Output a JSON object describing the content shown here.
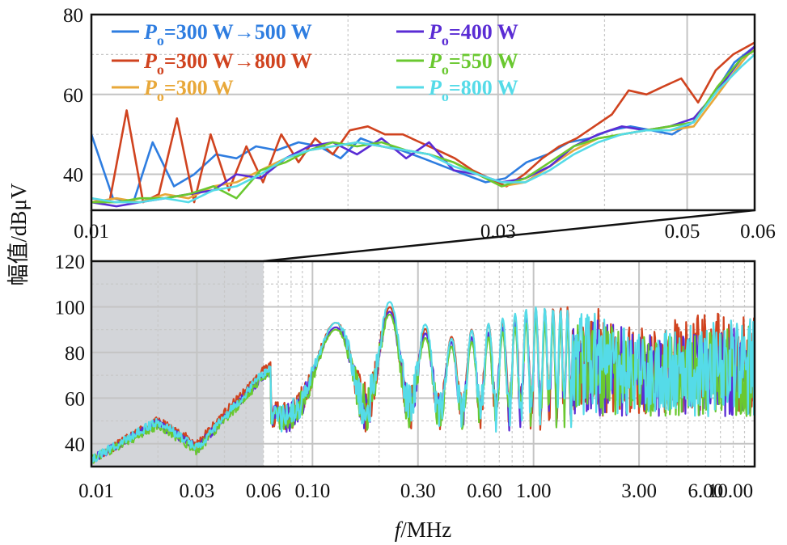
{
  "chart_data": [
    {
      "id": "inset",
      "type": "line",
      "xscale": "log",
      "xlim": [
        0.01,
        0.06
      ],
      "ylim": [
        31,
        80
      ],
      "yticks": [
        40,
        60,
        80
      ],
      "xticks": [
        "0.01",
        "0.03",
        "0.05",
        "0.06"
      ],
      "grid": true,
      "legend_position": "top-left",
      "series": [
        {
          "name": "Po=300 W→500 W",
          "label_P": "P",
          "label_sub": "o",
          "label_rest": "=300 W→500 W",
          "color": "#2e7de0",
          "x": [
            0.01,
            0.0106,
            0.0112,
            0.0118,
            0.0125,
            0.0132,
            0.014,
            0.0148,
            0.0156,
            0.0165,
            0.0175,
            0.0185,
            0.0196,
            0.0207,
            0.0219,
            0.0231,
            0.0245,
            0.0259,
            0.0274,
            0.029,
            0.0306,
            0.0324,
            0.0343,
            0.0363,
            0.0384,
            0.0406,
            0.0429,
            0.0454,
            0.048,
            0.0508,
            0.0537,
            0.0568,
            0.06
          ],
          "y": [
            50,
            34,
            33,
            48,
            37,
            40,
            45,
            44,
            47,
            46,
            48,
            47,
            44,
            49,
            47,
            46,
            44,
            42,
            40,
            38,
            39,
            43,
            45,
            48,
            49,
            51,
            52,
            51,
            50,
            53,
            60,
            68,
            72
          ]
        },
        {
          "name": "Po=300 W→800 W",
          "label_P": "P",
          "label_sub": "o",
          "label_rest": "=300 W→800 W",
          "color": "#d0431f",
          "x": [
            0.01,
            0.0105,
            0.011,
            0.0115,
            0.012,
            0.0126,
            0.0132,
            0.0138,
            0.0145,
            0.0152,
            0.0159,
            0.0167,
            0.0175,
            0.0183,
            0.0192,
            0.0201,
            0.0211,
            0.0221,
            0.0232,
            0.0243,
            0.0255,
            0.0267,
            0.028,
            0.0293,
            0.0307,
            0.0322,
            0.0338,
            0.0354,
            0.0371,
            0.0389,
            0.0408,
            0.0427,
            0.0448,
            0.0469,
            0.0492,
            0.0515,
            0.054,
            0.0566,
            0.06
          ],
          "y": [
            34,
            33,
            56,
            33,
            35,
            54,
            33,
            50,
            36,
            47,
            38,
            50,
            43,
            49,
            45,
            51,
            52,
            50,
            50,
            48,
            46,
            44,
            41,
            39,
            37,
            40,
            44,
            47,
            49,
            52,
            55,
            61,
            60,
            62,
            64,
            58,
            66,
            70,
            73
          ]
        },
        {
          "name": "Po=300 W",
          "label_P": "P",
          "label_sub": "o",
          "label_rest": "=300 W",
          "color": "#e8a83a",
          "x": [
            0.01,
            0.0107,
            0.0114,
            0.0122,
            0.013,
            0.0139,
            0.0148,
            0.0158,
            0.0169,
            0.018,
            0.0192,
            0.0205,
            0.0219,
            0.0234,
            0.0249,
            0.0266,
            0.0284,
            0.0303,
            0.0323,
            0.0345,
            0.0368,
            0.0393,
            0.0419,
            0.0447,
            0.0477,
            0.0509,
            0.0543,
            0.0579,
            0.06
          ],
          "y": [
            33,
            34,
            33,
            35,
            34,
            37,
            38,
            41,
            44,
            46,
            47,
            48,
            47,
            46,
            45,
            43,
            40,
            37,
            38,
            42,
            46,
            49,
            50,
            51,
            51,
            52,
            60,
            68,
            72
          ]
        },
        {
          "name": "Po=400 W",
          "label_P": "P",
          "label_sub": "o",
          "label_rest": "=400 W",
          "color": "#5a2cd4",
          "x": [
            0.01,
            0.0107,
            0.0114,
            0.0122,
            0.013,
            0.0139,
            0.0148,
            0.0158,
            0.0169,
            0.018,
            0.0192,
            0.0205,
            0.0219,
            0.0234,
            0.0249,
            0.0266,
            0.0284,
            0.0303,
            0.0323,
            0.0345,
            0.0368,
            0.0393,
            0.0419,
            0.0447,
            0.0477,
            0.0509,
            0.0543,
            0.0579,
            0.06
          ],
          "y": [
            33,
            32,
            33,
            34,
            35,
            36,
            40,
            39,
            44,
            47,
            48,
            45,
            49,
            44,
            48,
            41,
            40,
            38,
            39,
            42,
            47,
            50,
            52,
            51,
            52,
            54,
            61,
            69,
            72
          ]
        },
        {
          "name": "Po=550 W",
          "label_P": "P",
          "label_sub": "o",
          "label_rest": "=550 W",
          "color": "#6ac830",
          "x": [
            0.01,
            0.0107,
            0.0114,
            0.0122,
            0.013,
            0.0139,
            0.0148,
            0.0158,
            0.0169,
            0.018,
            0.0192,
            0.0205,
            0.0219,
            0.0234,
            0.0249,
            0.0266,
            0.0284,
            0.0303,
            0.0323,
            0.0345,
            0.0368,
            0.0393,
            0.0419,
            0.0447,
            0.0477,
            0.0509,
            0.0543,
            0.0579,
            0.06
          ],
          "y": [
            33,
            33,
            34,
            34,
            35,
            37,
            34,
            41,
            43,
            46,
            48,
            47,
            48,
            46,
            45,
            43,
            40,
            37,
            39,
            43,
            47,
            49,
            50,
            51,
            52,
            53,
            62,
            69,
            71
          ]
        },
        {
          "name": "Po=800 W",
          "label_P": "P",
          "label_sub": "o",
          "label_rest": "=800 W",
          "color": "#55dbe8",
          "x": [
            0.01,
            0.0107,
            0.0114,
            0.0122,
            0.013,
            0.0139,
            0.0148,
            0.0158,
            0.0169,
            0.018,
            0.0192,
            0.0205,
            0.0219,
            0.0234,
            0.0249,
            0.0266,
            0.0284,
            0.0303,
            0.0323,
            0.0345,
            0.0368,
            0.0393,
            0.0419,
            0.0447,
            0.0477,
            0.0509,
            0.0543,
            0.0579,
            0.06
          ],
          "y": [
            34,
            33,
            33,
            34,
            33,
            36,
            37,
            40,
            44,
            46,
            47,
            48,
            47,
            46,
            45,
            42,
            40,
            38,
            38,
            41,
            45,
            48,
            50,
            51,
            51,
            53,
            61,
            67,
            70
          ]
        }
      ]
    },
    {
      "id": "main",
      "type": "line",
      "xscale": "log",
      "xlim": [
        0.01,
        10
      ],
      "ylim": [
        30,
        120
      ],
      "yticks": [
        40,
        60,
        80,
        100,
        120
      ],
      "xticks": [
        "0.01",
        "0.03",
        "0.06",
        "0.10",
        "0.30",
        "0.60",
        "1.00",
        "3.00",
        "6.00",
        "10.00"
      ],
      "grid": true,
      "shaded_region": [
        0.01,
        0.06
      ],
      "xlabel_italic": "f",
      "xlabel_rest": "/MHz",
      "ylabel": "幅值/dBμV",
      "series": [
        {
          "name": "Po=300 W→800 W",
          "color": "#d0431f",
          "x": [
            0.01,
            0.02,
            0.03,
            0.06,
            0.1,
            0.2,
            0.3,
            0.4,
            0.6,
            1,
            2,
            3,
            6,
            10
          ],
          "y": [
            33,
            50,
            40,
            72,
            88,
            103,
            92,
            86,
            92,
            99,
            101,
            95,
            97,
            98
          ]
        },
        {
          "name": "Po=400 W",
          "color": "#5a2cd4",
          "x": [
            0.01,
            0.02,
            0.03,
            0.06,
            0.1,
            0.2,
            0.3,
            0.4,
            0.6,
            1,
            2,
            3,
            6,
            10
          ],
          "y": [
            33,
            49,
            38,
            70,
            86,
            101,
            90,
            84,
            88,
            96,
            95,
            88,
            90,
            92
          ]
        },
        {
          "name": "Po=550 W",
          "color": "#6ac830",
          "x": [
            0.01,
            0.02,
            0.03,
            0.06,
            0.1,
            0.2,
            0.3,
            0.4,
            0.6,
            1,
            2,
            3,
            6,
            10
          ],
          "y": [
            33,
            48,
            37,
            69,
            85,
            100,
            88,
            82,
            86,
            94,
            93,
            87,
            90,
            93
          ]
        },
        {
          "name": "Po=800 W",
          "color": "#55dbe8",
          "x": [
            0.01,
            0.02,
            0.03,
            0.06,
            0.1,
            0.2,
            0.3,
            0.4,
            0.6,
            1,
            2,
            3,
            6,
            10
          ],
          "y": [
            33,
            50,
            38,
            71,
            87,
            105,
            95,
            85,
            92,
            100,
            97,
            88,
            93,
            95
          ]
        }
      ]
    }
  ]
}
